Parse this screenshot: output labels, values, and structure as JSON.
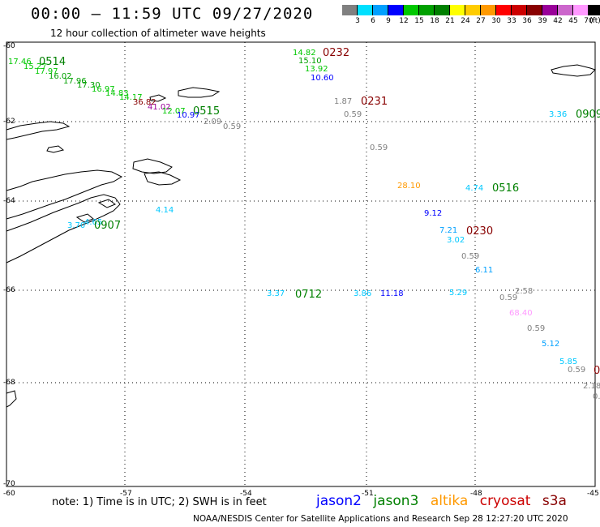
{
  "header": {
    "title": "00:00 – 11:59 UTC 09/27/2020",
    "subtitle": "12 hour collection of altimeter wave heights"
  },
  "colorbar": {
    "colors": [
      "#808080",
      "#00e0ff",
      "#00a0ff",
      "#0000ff",
      "#00c800",
      "#00a000",
      "#008000",
      "#ffff00",
      "#ffcc00",
      "#ff9900",
      "#ff0000",
      "#cc0000",
      "#880000",
      "#990099",
      "#cc66cc",
      "#ff99ff",
      "#000000"
    ],
    "labels": [
      "3",
      "6",
      "9",
      "12",
      "15",
      "18",
      "21",
      "24",
      "27",
      "30",
      "33",
      "36",
      "39",
      "42",
      "45",
      "70",
      "(ft)"
    ]
  },
  "axes": {
    "lon_labels": [
      "-57",
      "-54",
      "-51",
      "-48",
      "-45"
    ],
    "lat_labels": [
      "-60",
      "-62",
      "-64",
      "-66",
      "-68",
      "-70"
    ],
    "corner_label": "-60"
  },
  "passes": [
    {
      "id": "0514",
      "color": "#008000"
    },
    {
      "id": "0232",
      "color": "#880000"
    },
    {
      "id": "0231",
      "color": "#880000"
    },
    {
      "id": "0515",
      "color": "#008000"
    },
    {
      "id": "0909",
      "color": "#008000"
    },
    {
      "id": "0516",
      "color": "#008000"
    },
    {
      "id": "0907",
      "color": "#008000"
    },
    {
      "id": "0230",
      "color": "#880000"
    },
    {
      "id": "0712",
      "color": "#008000"
    },
    {
      "id": "0",
      "color": "#880000"
    }
  ],
  "wave_labels": [
    {
      "v": "17.46",
      "c": "#00c800"
    },
    {
      "v": "15.27",
      "c": "#00c800"
    },
    {
      "v": "17.97",
      "c": "#00c800"
    },
    {
      "v": "16.02",
      "c": "#00a000"
    },
    {
      "v": "17.96",
      "c": "#00a000"
    },
    {
      "v": "17.30",
      "c": "#00a000"
    },
    {
      "v": "16.97",
      "c": "#00c800"
    },
    {
      "v": "14.83",
      "c": "#00c800"
    },
    {
      "v": "14.17",
      "c": "#00c800"
    },
    {
      "v": "36.82",
      "c": "#880000"
    },
    {
      "v": "41.02",
      "c": "#990099"
    },
    {
      "v": "12.07",
      "c": "#00c800"
    },
    {
      "v": "10.97",
      "c": "#0000ff"
    },
    {
      "v": "2.09",
      "c": "#808080"
    },
    {
      "v": "0.59",
      "c": "#808080"
    },
    {
      "v": "14.82",
      "c": "#00c800"
    },
    {
      "v": "15.10",
      "c": "#00a000"
    },
    {
      "v": "13.92",
      "c": "#00c800"
    },
    {
      "v": "10.60",
      "c": "#0000ff"
    },
    {
      "v": "1.87",
      "c": "#808080"
    },
    {
      "v": "0.59",
      "c": "#808080"
    },
    {
      "v": "0.59",
      "c": "#808080"
    },
    {
      "v": "3.36",
      "c": "#00c8ff"
    },
    {
      "v": "28.10",
      "c": "#ff9900"
    },
    {
      "v": "4.74",
      "c": "#00c8ff"
    },
    {
      "v": "9.12",
      "c": "#0000ff"
    },
    {
      "v": "7.21",
      "c": "#00a0ff"
    },
    {
      "v": "3.02",
      "c": "#00c8ff"
    },
    {
      "v": "0.59",
      "c": "#808080"
    },
    {
      "v": "6.11",
      "c": "#00a0ff"
    },
    {
      "v": "4.14",
      "c": "#00c8ff"
    },
    {
      "v": "3.70",
      "c": "#00c8ff"
    },
    {
      "v": "4.65",
      "c": "#00c8ff"
    },
    {
      "v": "3.37",
      "c": "#00c8ff"
    },
    {
      "v": "3.86",
      "c": "#00c8ff"
    },
    {
      "v": "11.18",
      "c": "#0000ff"
    },
    {
      "v": "5.29",
      "c": "#00c8ff"
    },
    {
      "v": "2.58",
      "c": "#808080"
    },
    {
      "v": "0.59",
      "c": "#808080"
    },
    {
      "v": "68.40",
      "c": "#ff99ff"
    },
    {
      "v": "0.59",
      "c": "#808080"
    },
    {
      "v": "5.12",
      "c": "#00a0ff"
    },
    {
      "v": "5.85",
      "c": "#00c8ff"
    },
    {
      "v": "0.59",
      "c": "#808080"
    },
    {
      "v": "2.18",
      "c": "#808080"
    },
    {
      "v": "0.",
      "c": "#808080"
    }
  ],
  "footer": {
    "note": "note: 1) Time is in UTC; 2) SWH is in feet",
    "satellites": [
      {
        "name": "jason2",
        "color": "#0000ff"
      },
      {
        "name": "jason3",
        "color": "#008000"
      },
      {
        "name": "altika",
        "color": "#ff9900"
      },
      {
        "name": "cryosat",
        "color": "#cc0000"
      },
      {
        "name": "s3a",
        "color": "#880000"
      }
    ],
    "credit": "NOAA/NESDIS Center for Satellite Applications and Research    Sep 28 12:27:20 UTC 2020"
  }
}
